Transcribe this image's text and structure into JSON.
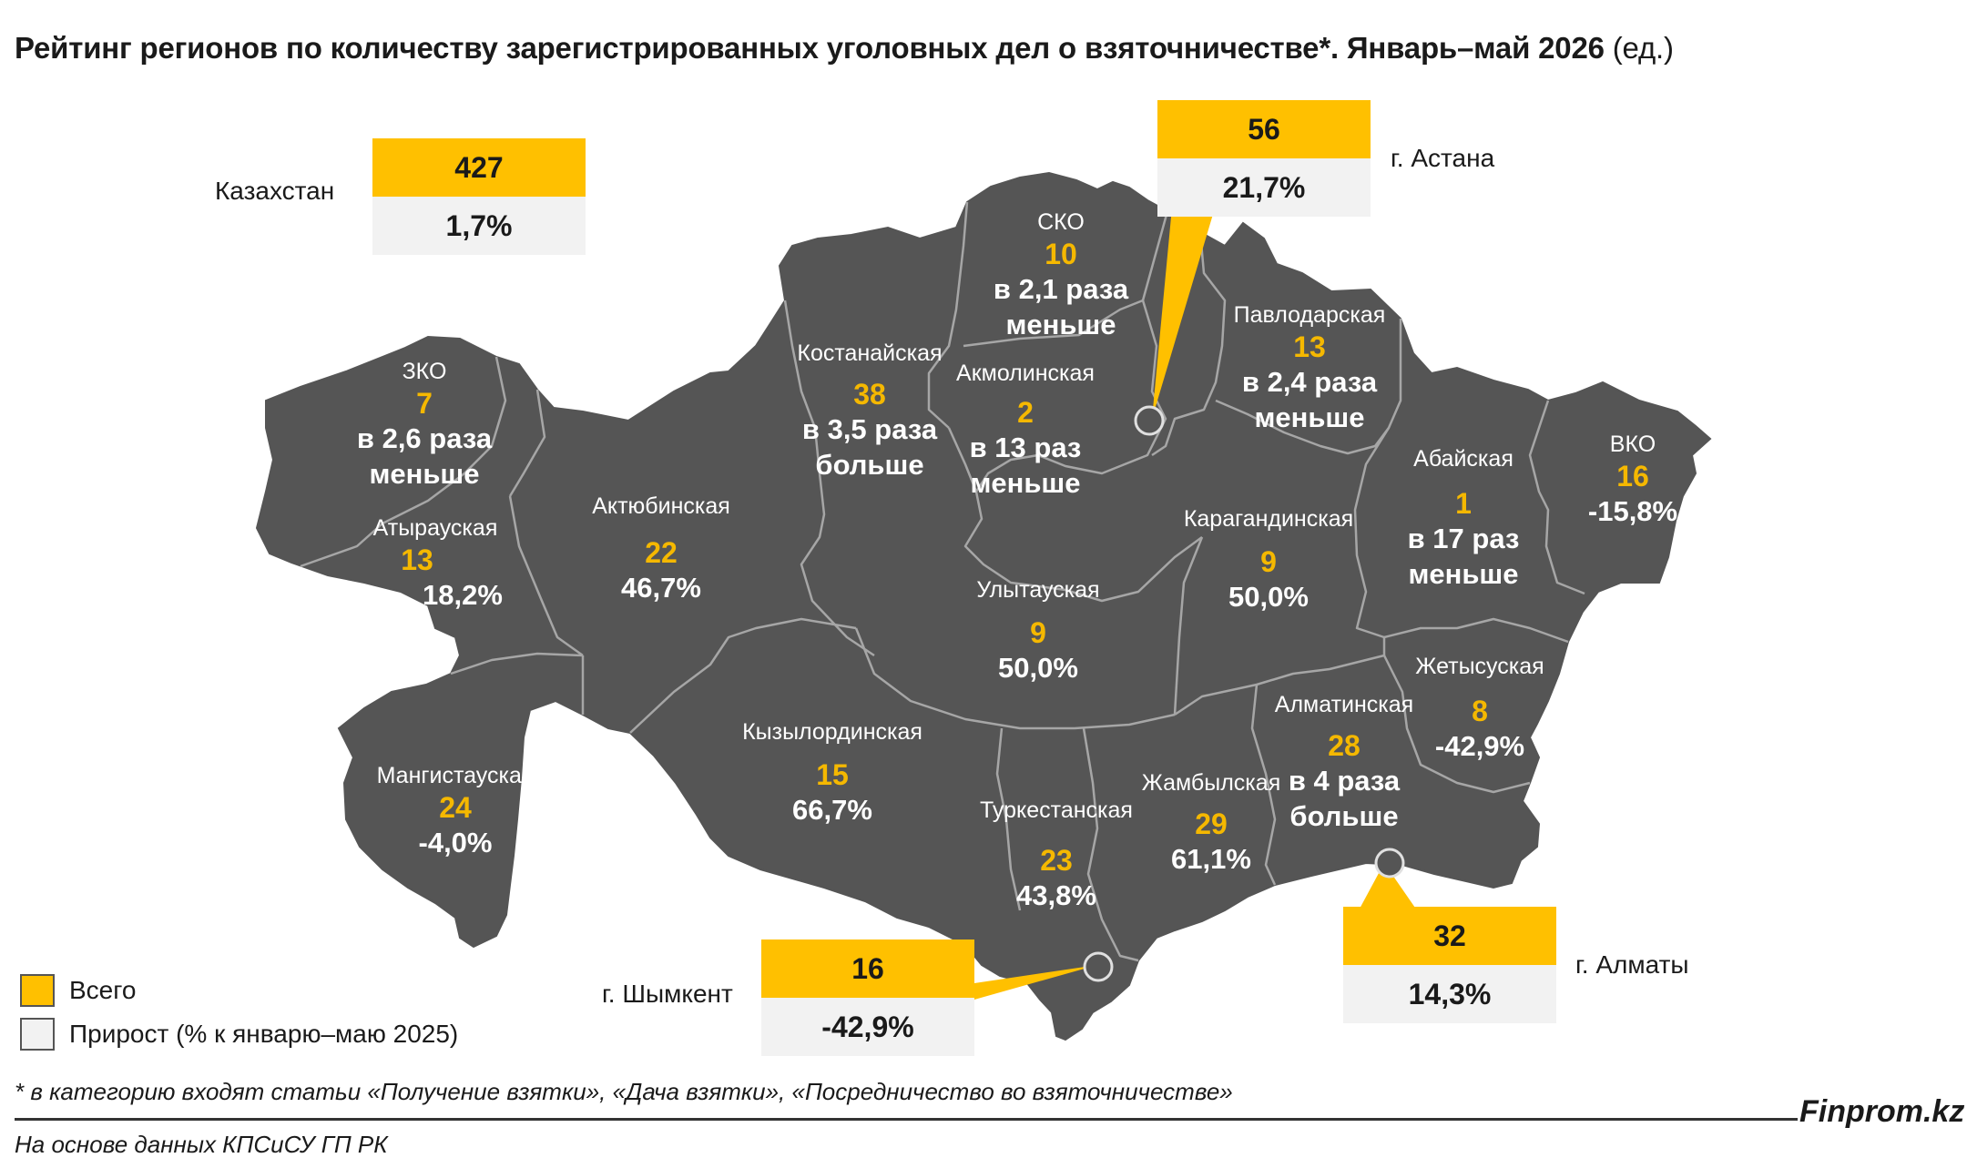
{
  "title": {
    "main": "Рейтинг регионов по количеству зарегистрированных уголовных дел о взяточничестве*. Январь–май 2026",
    "unit": "(ед.)"
  },
  "colors": {
    "total": "#ffc000",
    "growth": "#f2f2f2",
    "map_fill": "#555555",
    "border": "#a6a6a6"
  },
  "kazakhstan": {
    "label": "Казахстан",
    "value": "427",
    "delta": "1,7%"
  },
  "cities": [
    {
      "label": "г. Астана",
      "value": "56",
      "delta": "21,7%"
    },
    {
      "label": "г. Шымкент",
      "value": "16",
      "delta": "-42,9%"
    },
    {
      "label": "г. Алматы",
      "value": "32",
      "delta": "14,3%"
    }
  ],
  "regions": [
    {
      "name": "ЗКО",
      "value": "7",
      "delta": "в 2,6 раза меньше"
    },
    {
      "name": "Атырауская",
      "value": "13",
      "delta": "18,2%"
    },
    {
      "name": "Мангистауская",
      "value": "24",
      "delta": "-4,0%"
    },
    {
      "name": "Актюбинская",
      "value": "22",
      "delta": "46,7%"
    },
    {
      "name": "Костанайская",
      "value": "38",
      "delta": "в 3,5 раза больше"
    },
    {
      "name": "СКО",
      "value": "10",
      "delta": "в 2,1 раза меньше"
    },
    {
      "name": "Акмолинская",
      "value": "2",
      "delta": "в 13 раз меньше"
    },
    {
      "name": "Павлодарская",
      "value": "13",
      "delta": "в 2,4 раза меньше"
    },
    {
      "name": "Карагандинская",
      "value": "9",
      "delta": "50,0%"
    },
    {
      "name": "Улытауская",
      "value": "9",
      "delta": "50,0%"
    },
    {
      "name": "Кызылординская",
      "value": "15",
      "delta": "66,7%"
    },
    {
      "name": "Туркестанская",
      "value": "23",
      "delta": "43,8%"
    },
    {
      "name": "Жамбылская",
      "value": "29",
      "delta": "61,1%"
    },
    {
      "name": "Алматинская",
      "value": "28",
      "delta": "в 4 раза больше"
    },
    {
      "name": "Жетысуская",
      "value": "8",
      "delta": "-42,9%"
    },
    {
      "name": "Абайская",
      "value": "1",
      "delta": "в 17 раз меньше"
    },
    {
      "name": "ВКО",
      "value": "16",
      "delta": "-15,8%"
    }
  ],
  "legend": {
    "total": "Всего",
    "growth": "Прирост (% к январю–маю 2025)"
  },
  "footnote": "* в категорию входят статьи «Получение взятки», «Дача взятки», «Посредничество во взяточничестве»",
  "brand": "Finprom.kz",
  "source": "На основе данных КПСиСУ ГП РК"
}
